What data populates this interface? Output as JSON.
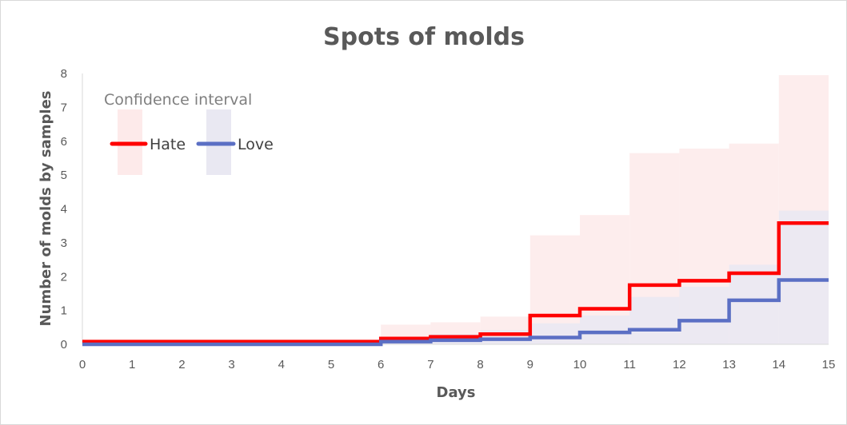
{
  "chart_data": {
    "type": "line",
    "title": "Spots of molds",
    "xlabel": "Days",
    "ylabel": "Number of molds by samples",
    "xlim": [
      0,
      15
    ],
    "ylim": [
      0,
      8
    ],
    "x_ticks": [
      "0",
      "1",
      "2",
      "3",
      "4",
      "5",
      "6",
      "7",
      "8",
      "9",
      "10",
      "11",
      "12",
      "13",
      "14",
      "15"
    ],
    "y_ticks": [
      "0",
      "1",
      "2",
      "3",
      "4",
      "5",
      "6",
      "7",
      "8"
    ],
    "grid": false,
    "legend": {
      "placement": "top-left",
      "title": "Confidence interval",
      "entries": [
        "Hate",
        "Love"
      ]
    },
    "step_days": [
      0,
      1,
      2,
      3,
      4,
      5,
      6,
      7,
      8,
      9,
      10,
      11,
      12,
      13,
      14,
      15
    ],
    "series": [
      {
        "name": "Hate",
        "color": "#ff0000",
        "band_color": "#fdeaea",
        "values": [
          0.08,
          0.08,
          0.08,
          0.08,
          0.08,
          0.08,
          0.17,
          0.22,
          0.3,
          0.85,
          1.05,
          1.75,
          1.88,
          2.1,
          3.58,
          3.58
        ],
        "ci_upper": [
          0.08,
          0.08,
          0.08,
          0.08,
          0.08,
          0.08,
          0.58,
          0.65,
          0.82,
          3.22,
          3.82,
          5.65,
          5.78,
          5.93,
          7.95,
          7.95
        ]
      },
      {
        "name": "Love",
        "color": "#5b6fc4",
        "band_color": "#e9e8f2",
        "values": [
          0.0,
          0.0,
          0.0,
          0.0,
          0.0,
          0.0,
          0.08,
          0.12,
          0.15,
          0.2,
          0.35,
          0.43,
          0.7,
          1.3,
          1.9,
          1.9
        ],
        "ci_upper": [
          0.0,
          0.0,
          0.0,
          0.0,
          0.0,
          0.0,
          0.2,
          0.3,
          0.42,
          0.62,
          0.85,
          1.4,
          1.7,
          2.35,
          3.95,
          3.95
        ]
      }
    ]
  }
}
